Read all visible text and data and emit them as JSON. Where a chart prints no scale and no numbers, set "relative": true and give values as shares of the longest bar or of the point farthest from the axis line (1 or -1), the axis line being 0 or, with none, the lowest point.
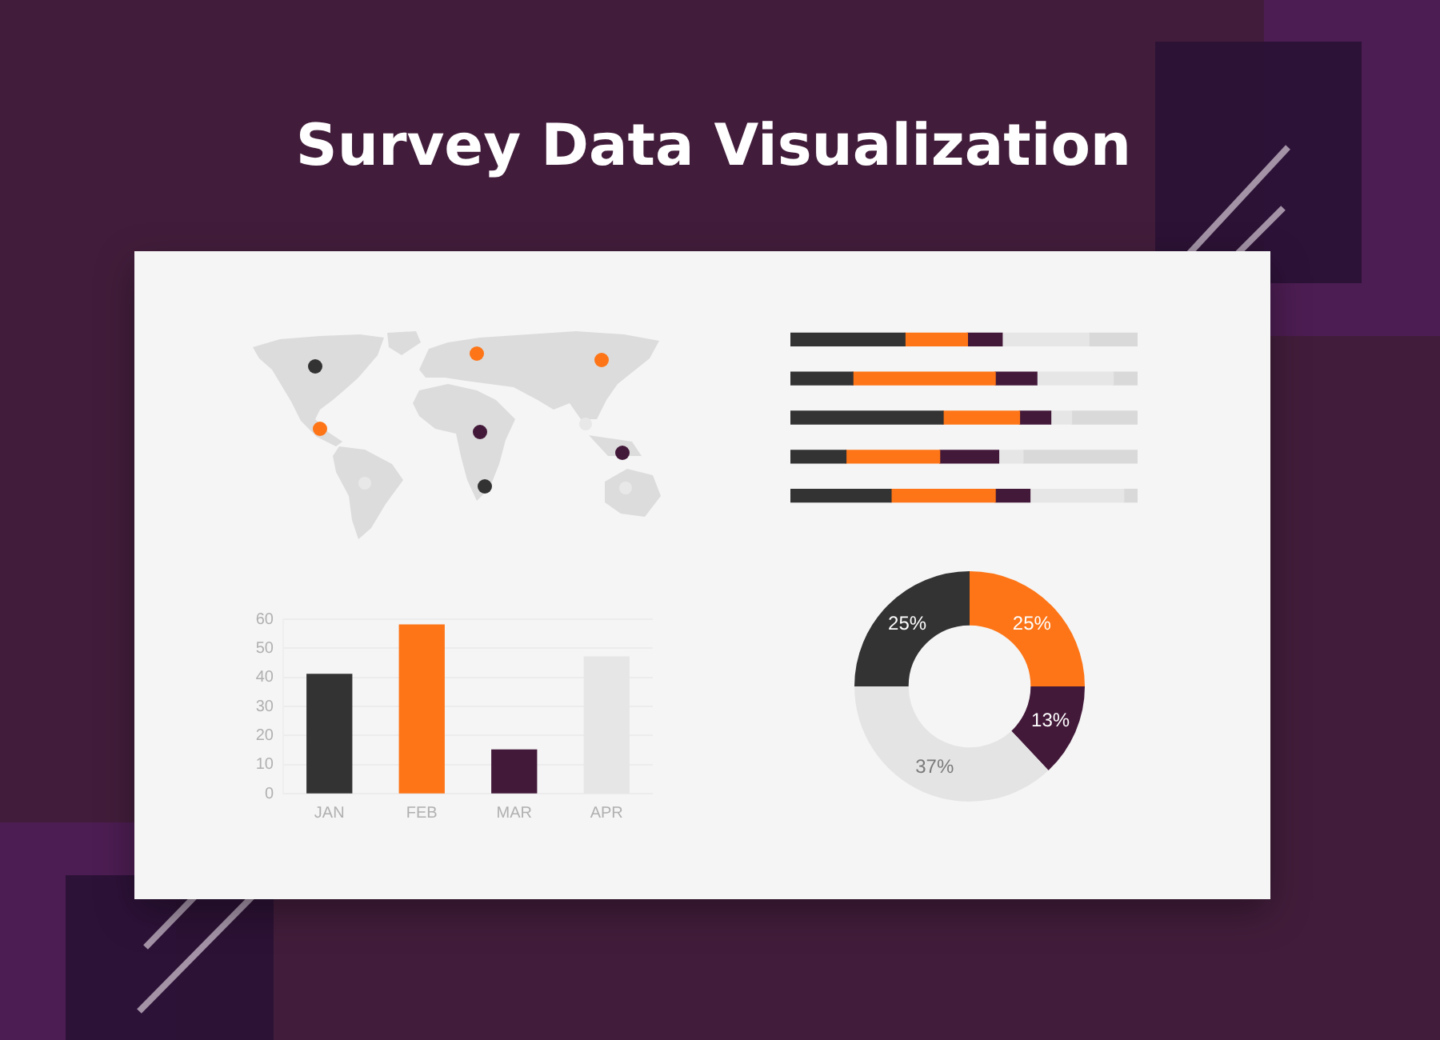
{
  "chart_data": [
    {
      "type": "bar",
      "title": "Survey Data Visualization",
      "orientation": "horizontal",
      "stacked": true,
      "relative": true,
      "categories": [
        null,
        null,
        null,
        null,
        null
      ],
      "series": [
        {
          "color": "#333333",
          "values": [
            0.33,
            0.18,
            0.44,
            0.16,
            0.29
          ]
        },
        {
          "color": "#fd7517",
          "values": [
            0.18,
            0.41,
            0.22,
            0.27,
            0.3
          ]
        },
        {
          "color": "#43193a",
          "values": [
            0.1,
            0.12,
            0.09,
            0.17,
            0.1
          ]
        },
        {
          "color": "#e6e6e6",
          "values": [
            0.25,
            0.22,
            0.06,
            0.07,
            0.27
          ]
        },
        {
          "color": "#d9d9d9",
          "values": [
            0.14,
            0.07,
            0.19,
            0.33,
            0.04
          ]
        }
      ]
    },
    {
      "type": "bar",
      "categories": [
        "JAN",
        "FEB",
        "MAR",
        "APR"
      ],
      "values": [
        41,
        58,
        15,
        47
      ],
      "colors": [
        "#333333",
        "#fd7517",
        "#43193a",
        "#e6e6e6"
      ],
      "ylim": [
        0,
        60
      ],
      "yticks": [
        0,
        10,
        20,
        30,
        40,
        50,
        60
      ],
      "grid": "y"
    },
    {
      "type": "donut",
      "categories": [
        null,
        null,
        null,
        null
      ],
      "values": [
        25,
        13,
        37,
        25
      ],
      "colors": [
        "#fd7517",
        "#43193a",
        "#e4e4e4",
        "#333333"
      ],
      "value_labels": [
        "25%",
        "13%",
        "37%",
        "25%"
      ]
    }
  ]
}
